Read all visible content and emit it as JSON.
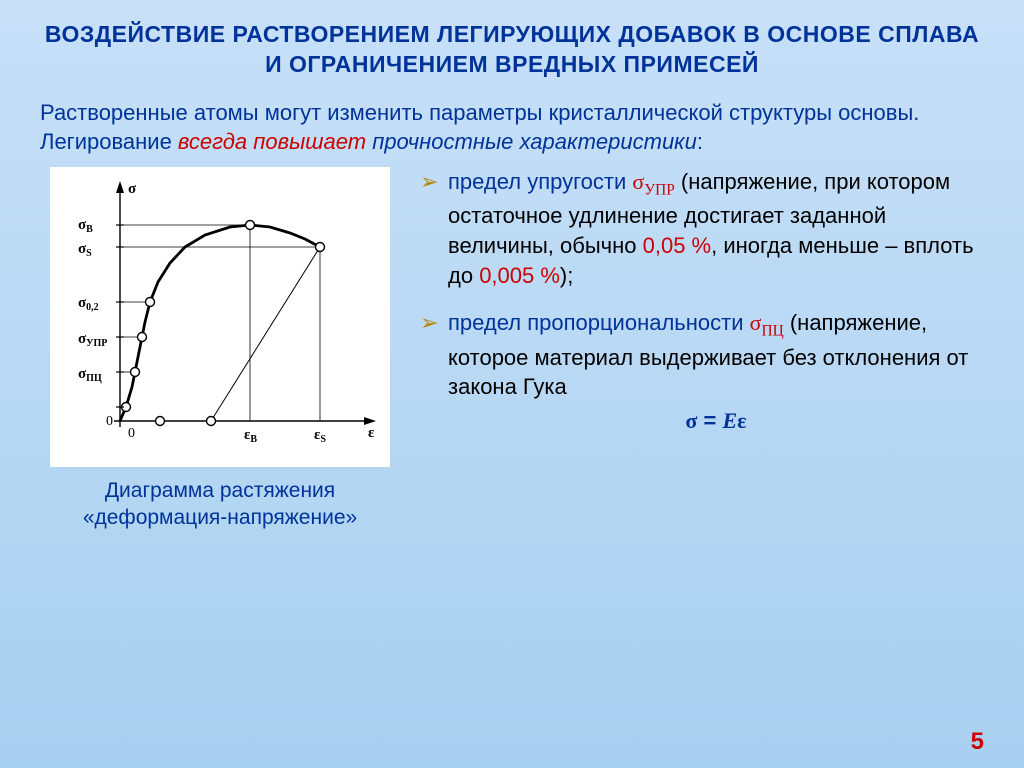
{
  "title": "ВОЗДЕЙСТВИЕ РАСТВОРЕНИЕМ ЛЕГИРУЮЩИХ ДОБАВОК В ОСНОВЕ СПЛАВА И ОГРАНИЧЕНИЕМ ВРЕДНЫХ ПРИМЕСЕЙ",
  "intro": {
    "part1": "Растворенные атомы могут изменить параметры кристаллической структуры основы. Легирование ",
    "red": "всегда повышает",
    "blue_ital": " прочностные характеристики",
    "colon": ":"
  },
  "chart": {
    "caption_line1": "Диаграмма растяжения",
    "caption_line2": "«деформация-напряжение»",
    "y_axis_label": "σ",
    "x_axis_label": "ε",
    "origin_label": "0",
    "y_ticks": [
      "σ",
      "σ",
      "σ",
      "σ",
      "σ"
    ],
    "y_tick_subs": [
      "В",
      "S",
      "0,2",
      "УПР",
      "ПЦ"
    ],
    "x_ticks": [
      "ε",
      "ε"
    ],
    "x_tick_subs": [
      "В",
      "S"
    ],
    "colors": {
      "bg": "#ffffff",
      "stroke": "#000000"
    },
    "curve_points": [
      [
        70,
        254
      ],
      [
        76,
        240
      ],
      [
        82,
        220
      ],
      [
        85,
        205
      ],
      [
        88,
        190
      ],
      [
        92,
        170
      ],
      [
        95,
        155
      ],
      [
        100,
        135
      ],
      [
        108,
        115
      ],
      [
        120,
        96
      ],
      [
        135,
        80
      ],
      [
        155,
        68
      ],
      [
        180,
        60
      ],
      [
        200,
        58
      ],
      [
        220,
        60
      ],
      [
        240,
        66
      ],
      [
        255,
        72
      ],
      [
        270,
        80
      ]
    ],
    "unload_line": [
      [
        270,
        80
      ],
      [
        161,
        254
      ]
    ],
    "markers": [
      [
        76,
        240
      ],
      [
        85,
        205
      ],
      [
        92,
        170
      ],
      [
        100,
        135
      ],
      [
        200,
        58
      ],
      [
        270,
        80
      ],
      [
        161,
        254
      ],
      [
        110,
        254
      ]
    ],
    "dash_h": [
      [
        70,
        58,
        200,
        58
      ],
      [
        70,
        80,
        270,
        80
      ],
      [
        70,
        135,
        100,
        135
      ],
      [
        70,
        170,
        92,
        170
      ],
      [
        70,
        205,
        85,
        205
      ]
    ],
    "dash_v": [
      [
        200,
        58,
        200,
        254
      ],
      [
        270,
        80,
        270,
        254
      ]
    ]
  },
  "bullets": [
    {
      "lead": "предел упругости ",
      "sym": "σ",
      "sub": "УПР",
      "rest1": " (напряжение, при котором остаточное удлинение достигает заданной величины, обычно ",
      "v1": "0,05 %",
      "rest2": ", иногда меньше – вплоть до ",
      "v2": "0,005 %",
      "rest3": ");"
    },
    {
      "lead": "предел пропорциональности ",
      "sym": "σ",
      "sub": "ПЦ",
      "rest1": " (напряжение, которое материал выдерживает без отклонения от закона Гука",
      "eq_sigma": "σ",
      "eq_mid": " = ",
      "eq_E": "E",
      "eq_eps": "ε"
    }
  ],
  "page_number": "5"
}
